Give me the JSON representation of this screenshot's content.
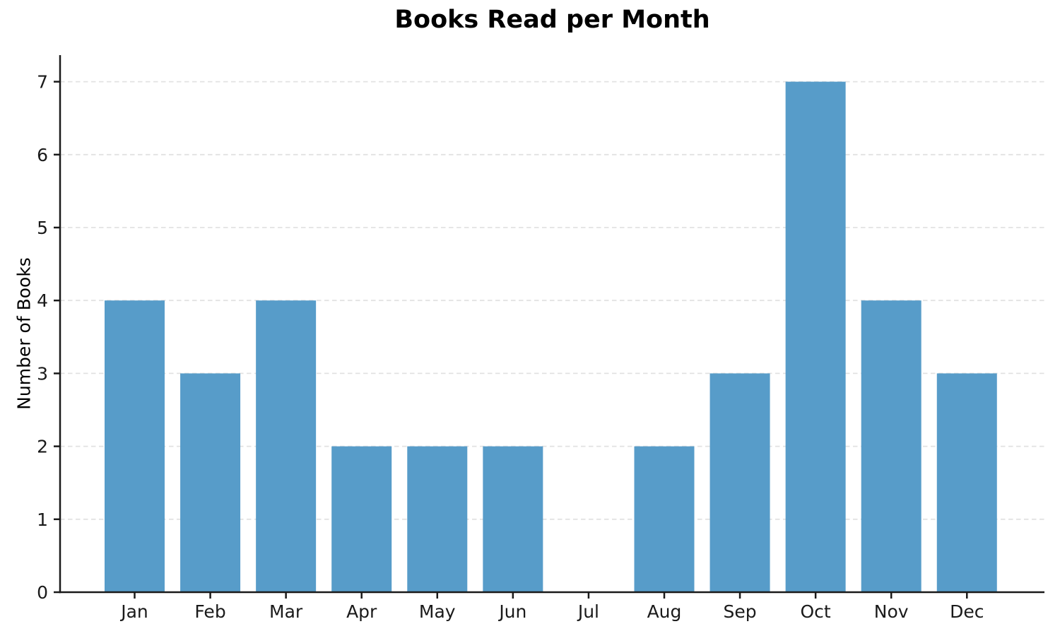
{
  "chart_data": {
    "type": "bar",
    "title": "Books Read per Month",
    "xlabel": "",
    "ylabel": "Number of Books",
    "categories": [
      "Jan",
      "Feb",
      "Mar",
      "Apr",
      "May",
      "Jun",
      "Jul",
      "Aug",
      "Sep",
      "Oct",
      "Nov",
      "Dec"
    ],
    "values": [
      4,
      3,
      4,
      2,
      2,
      2,
      0,
      2,
      3,
      7,
      4,
      3
    ],
    "yticks": [
      0,
      1,
      2,
      3,
      4,
      5,
      6,
      7
    ],
    "ylim": [
      0,
      7.35
    ],
    "grid": "horizontal-dashed",
    "legend_position": "none",
    "bar_color": "#579CC9",
    "grid_color": "#e2e2e2",
    "axis_color": "#1a1a1a",
    "background_color": "#ffffff"
  }
}
